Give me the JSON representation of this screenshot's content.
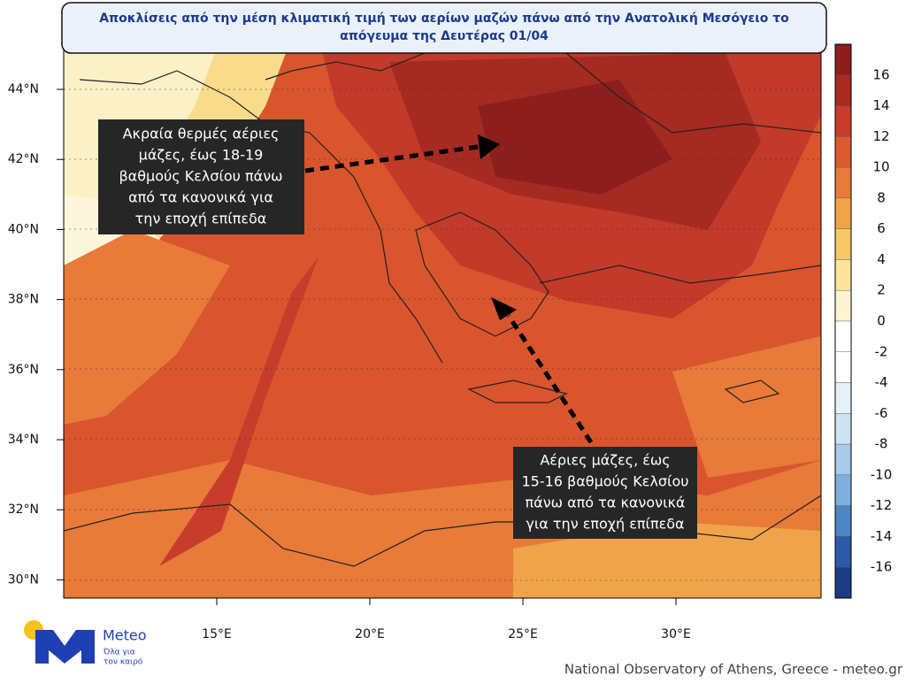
{
  "title": [
    "Αποκλίσεις από την μέση κλιματική τιμή των αερίων μαζών πάνω από την Ανατολική Μεσόγειο το",
    "απόγευμα της Δευτέρας 01/04"
  ],
  "annotations": [
    {
      "lines": [
        "Ακραία θερμές αέριες",
        "μάζες, έως 18-19",
        "βαθμούς Κελσίου πάνω",
        "από τα κανονικά για",
        "την εποχή επίπεδα"
      ]
    },
    {
      "lines": [
        "Αέριες μάζες, έως",
        "15-16 βαθμούς Κελσίου",
        "πάνω από τα κανονικά",
        "για την εποχή επίπεδα"
      ]
    }
  ],
  "lat_ticks": [
    "44°N",
    "42°N",
    "40°N",
    "38°N",
    "36°N",
    "34°N",
    "32°N",
    "30°N"
  ],
  "lon_ticks": [
    "15°E",
    "20°E",
    "25°E",
    "30°E"
  ],
  "colorbar": {
    "labels": [
      16,
      14,
      12,
      10,
      8,
      6,
      4,
      2,
      0,
      -2,
      -4,
      -6,
      -8,
      -10,
      -12,
      -14,
      -16
    ],
    "colors": [
      "#8c1f1d",
      "#a92a22",
      "#c83c2b",
      "#dc5a30",
      "#e87a3a",
      "#f0a44a",
      "#f6c868",
      "#fae49c",
      "#fdf4d3",
      "#ffffff",
      "#ffffff",
      "#e6f0f9",
      "#cfe2f3",
      "#a9cbe9",
      "#7fb0dd",
      "#4d86c4",
      "#2c5aa6",
      "#1d3b85"
    ]
  },
  "logo": {
    "name": "Meteo",
    "tagline": [
      "Όλα για",
      "τον καιρό"
    ]
  },
  "footer": "National Observatory of Athens, Greece - meteo.gr"
}
